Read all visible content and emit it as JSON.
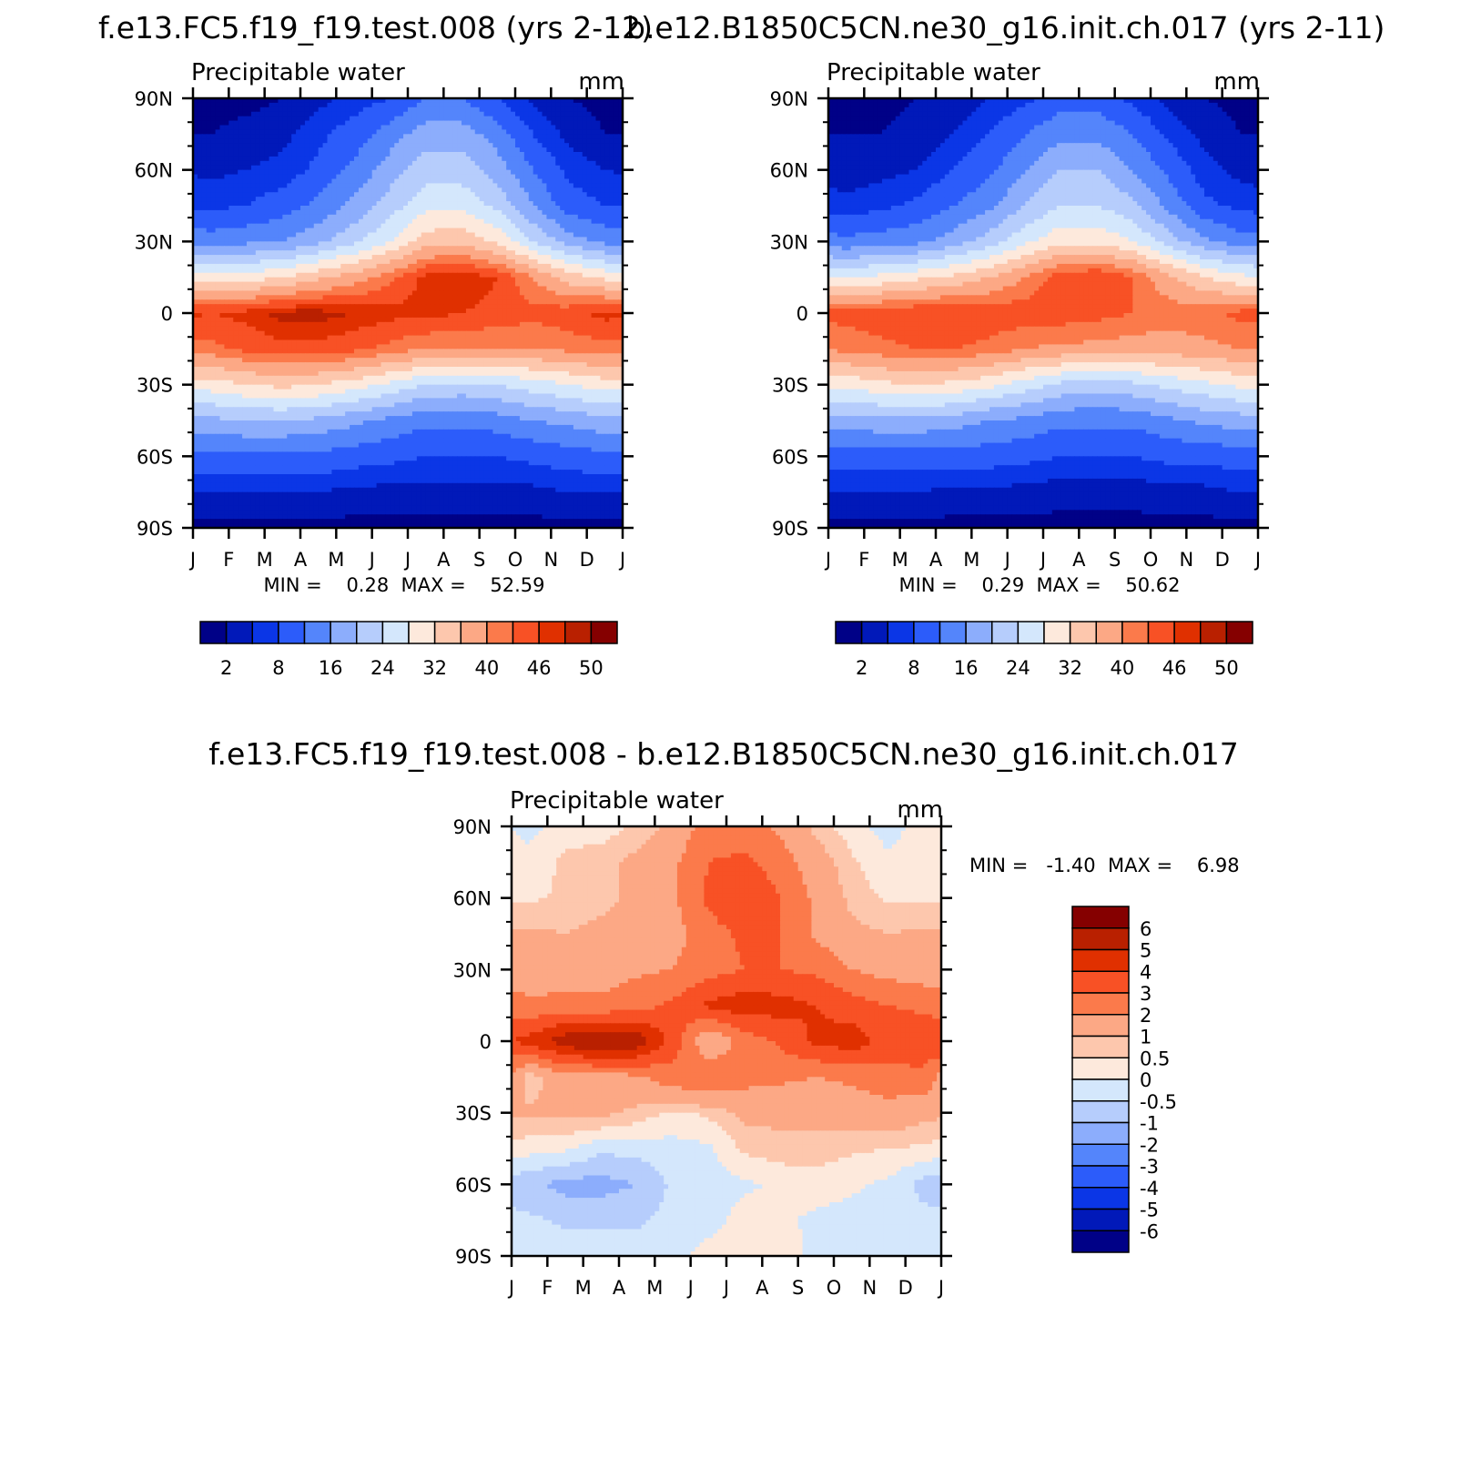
{
  "colors": {
    "positive": [
      "#fde9dc",
      "#fdc7ad",
      "#fca885",
      "#fb7a4b",
      "#f85125",
      "#e03000",
      "#b92000",
      "#850000"
    ],
    "negative": [
      "#d4e7fc",
      "#b6cdfc",
      "#8cadfc",
      "#5485fb",
      "#2c5cfa",
      "#0b36e6",
      "#0119b9",
      "#000187"
    ],
    "upper_scale": [
      "#000187",
      "#0119b9",
      "#0b36e6",
      "#2c5cfa",
      "#5485fb",
      "#8cadfc",
      "#b6cdfc",
      "#d4e7fc",
      "#fde9dc",
      "#fdc7ad",
      "#fca885",
      "#fb7a4b",
      "#f85125",
      "#e03000",
      "#b92000",
      "#850000"
    ]
  },
  "chart_data": [
    {
      "type": "heatmap",
      "panel": "model",
      "title": "f.e13.FC5.f19_f19.test.008 (yrs 2-12)",
      "subtitle": "Precipitable water",
      "units": "mm",
      "stats": "MIN =    0.28  MAX =    52.59",
      "x_ticks": [
        "J",
        "F",
        "M",
        "A",
        "M",
        "J",
        "J",
        "A",
        "S",
        "O",
        "N",
        "D",
        "J"
      ],
      "y_ticks": [
        "90N",
        "60N",
        "30N",
        "0",
        "30S",
        "60S",
        "90S"
      ],
      "legend_labels": [
        "2",
        "8",
        "16",
        "24",
        "32",
        "40",
        "46",
        "50"
      ],
      "months": [
        "J",
        "F",
        "M",
        "A",
        "M",
        "J",
        "J",
        "A",
        "S",
        "O",
        "N",
        "D"
      ],
      "latitudes": [
        90,
        75,
        60,
        45,
        30,
        15,
        0,
        -15,
        -30,
        -45,
        -60,
        -75,
        -90
      ],
      "values": [
        [
          1,
          1,
          2,
          4,
          6,
          8,
          12,
          12,
          8,
          4,
          2,
          1
        ],
        [
          2,
          3,
          4,
          7,
          10,
          14,
          18,
          18,
          14,
          8,
          4,
          2
        ],
        [
          4,
          5,
          6,
          9,
          13,
          18,
          22,
          22,
          18,
          12,
          7,
          5
        ],
        [
          7,
          8,
          10,
          13,
          17,
          22,
          27,
          27,
          23,
          16,
          10,
          8
        ],
        [
          14,
          15,
          16,
          19,
          23,
          28,
          34,
          35,
          31,
          24,
          18,
          15
        ],
        [
          30,
          30,
          32,
          35,
          38,
          42,
          47,
          48,
          46,
          40,
          34,
          31
        ],
        [
          46,
          47,
          49,
          49,
          48,
          47,
          47,
          46,
          45,
          44,
          45,
          47
        ],
        [
          42,
          44,
          45,
          45,
          44,
          42,
          40,
          40,
          40,
          40,
          41,
          42
        ],
        [
          30,
          32,
          33,
          32,
          30,
          27,
          24,
          23,
          24,
          26,
          28,
          30
        ],
        [
          19,
          20,
          20,
          19,
          17,
          15,
          13,
          13,
          14,
          16,
          17,
          19
        ],
        [
          11,
          11,
          11,
          11,
          10,
          9,
          8,
          8,
          8,
          9,
          10,
          11
        ],
        [
          5,
          5,
          5,
          5,
          4,
          4,
          4,
          4,
          4,
          4,
          5,
          5
        ],
        [
          1,
          1,
          1,
          1,
          1,
          1,
          1,
          1,
          1,
          1,
          1,
          1
        ]
      ],
      "levels": [
        2,
        5,
        8,
        12,
        16,
        20,
        24,
        28,
        32,
        36,
        40,
        43,
        46,
        48,
        50
      ]
    },
    {
      "type": "heatmap",
      "panel": "reference",
      "title": "b.e12.B1850C5CN.ne30_g16.init.ch.017 (yrs 2-11)",
      "subtitle": "Precipitable water",
      "units": "mm",
      "stats": "MIN =    0.29  MAX =    50.62",
      "x_ticks": [
        "J",
        "F",
        "M",
        "A",
        "M",
        "J",
        "J",
        "A",
        "S",
        "O",
        "N",
        "D",
        "J"
      ],
      "y_ticks": [
        "90N",
        "60N",
        "30N",
        "0",
        "30S",
        "60S",
        "90S"
      ],
      "legend_labels": [
        "2",
        "8",
        "16",
        "24",
        "32",
        "40",
        "46",
        "50"
      ],
      "months": [
        "J",
        "F",
        "M",
        "A",
        "M",
        "J",
        "J",
        "A",
        "S",
        "O",
        "N",
        "D"
      ],
      "latitudes": [
        90,
        75,
        60,
        45,
        30,
        15,
        0,
        -15,
        -30,
        -45,
        -60,
        -75,
        -90
      ],
      "values": [
        [
          1,
          1,
          2,
          3,
          5,
          7,
          10,
          10,
          7,
          4,
          2,
          1
        ],
        [
          2,
          2,
          3,
          5,
          8,
          12,
          15,
          15,
          12,
          7,
          4,
          2
        ],
        [
          3,
          4,
          5,
          8,
          11,
          16,
          20,
          20,
          16,
          11,
          6,
          4
        ],
        [
          6,
          7,
          9,
          12,
          15,
          20,
          24,
          24,
          21,
          15,
          9,
          7
        ],
        [
          13,
          14,
          15,
          18,
          22,
          27,
          31,
          31,
          28,
          22,
          17,
          14
        ],
        [
          28,
          29,
          31,
          33,
          36,
          40,
          45,
          46,
          43,
          37,
          32,
          29
        ],
        [
          44,
          45,
          46,
          46,
          45,
          45,
          45,
          44,
          43,
          42,
          42,
          44
        ],
        [
          41,
          42,
          43,
          43,
          42,
          40,
          39,
          39,
          38,
          38,
          39,
          40
        ],
        [
          29,
          31,
          32,
          31,
          29,
          26,
          23,
          22,
          23,
          25,
          27,
          29
        ],
        [
          18,
          19,
          19,
          18,
          16,
          15,
          13,
          13,
          13,
          15,
          17,
          18
        ],
        [
          10,
          10,
          10,
          10,
          10,
          9,
          8,
          8,
          8,
          9,
          9,
          10
        ],
        [
          5,
          5,
          5,
          4,
          4,
          4,
          3,
          3,
          3,
          4,
          4,
          5
        ],
        [
          1,
          1,
          1,
          1,
          1,
          1,
          1,
          1,
          1,
          1,
          1,
          1
        ]
      ],
      "levels": [
        2,
        5,
        8,
        12,
        16,
        20,
        24,
        28,
        32,
        36,
        40,
        43,
        46,
        48,
        50
      ]
    },
    {
      "type": "heatmap",
      "panel": "difference",
      "title": "f.e13.FC5.f19_f19.test.008 - b.e12.B1850C5CN.ne30_g16.init.ch.017",
      "subtitle": "Precipitable water",
      "units": "mm",
      "stats": "MIN =   -1.40  MAX =    6.98",
      "x_ticks": [
        "J",
        "F",
        "M",
        "A",
        "M",
        "J",
        "J",
        "A",
        "S",
        "O",
        "N",
        "D",
        "J"
      ],
      "y_ticks": [
        "90N",
        "60N",
        "30N",
        "0",
        "30S",
        "60S",
        "90S"
      ],
      "legend_labels": [
        "6",
        "5",
        "4",
        "3",
        "2",
        "1",
        "0.5",
        "0",
        "-0.5",
        "-1",
        "-2",
        "-3",
        "-4",
        "-5",
        "-6"
      ],
      "months": [
        "J",
        "F",
        "M",
        "A",
        "M",
        "J",
        "J",
        "A",
        "S",
        "O",
        "N",
        "D"
      ],
      "latitudes": [
        90,
        75,
        60,
        45,
        30,
        15,
        0,
        -15,
        -30,
        -45,
        -60,
        -75,
        -90
      ],
      "values": [
        [
          -0.2,
          0.3,
          0.2,
          0.6,
          1.2,
          2.5,
          2.5,
          1.8,
          0.8,
          0.2,
          -0.2,
          0.2
        ],
        [
          0.2,
          0.6,
          0.8,
          1.2,
          1.8,
          3.0,
          3.2,
          2.5,
          1.4,
          0.6,
          0.1,
          0.3
        ],
        [
          0.4,
          0.6,
          0.8,
          1.2,
          1.8,
          3.2,
          4.1,
          3.0,
          1.8,
          0.8,
          0.4,
          0.4
        ],
        [
          1.1,
          1.0,
          1.2,
          1.4,
          1.6,
          2.6,
          3.2,
          3.0,
          1.8,
          1.2,
          1.0,
          1.1
        ],
        [
          1.3,
          1.4,
          1.6,
          1.8,
          2.0,
          2.6,
          3.0,
          3.0,
          2.8,
          2.0,
          1.6,
          1.4
        ],
        [
          2.2,
          2.4,
          2.2,
          2.6,
          3.2,
          4.2,
          4.6,
          4.4,
          4.0,
          3.4,
          3.0,
          2.8
        ],
        [
          4.4,
          5.6,
          6.2,
          5.8,
          3.6,
          1.0,
          2.4,
          3.2,
          4.2,
          4.6,
          3.6,
          3.6
        ],
        [
          0.6,
          1.6,
          1.6,
          1.8,
          2.6,
          3.0,
          2.4,
          2.2,
          2.0,
          2.2,
          2.6,
          2.8
        ],
        [
          1.1,
          1.2,
          1.2,
          0.8,
          0.4,
          0.6,
          1.2,
          1.2,
          1.2,
          1.4,
          1.6,
          1.2
        ],
        [
          0.2,
          0.1,
          -0.4,
          -0.3,
          -0.2,
          -0.1,
          0.6,
          0.8,
          0.8,
          0.6,
          0.5,
          0.4
        ],
        [
          -0.9,
          -1.2,
          -1.2,
          -1.0,
          -0.4,
          -0.3,
          -0.1,
          0.1,
          0.2,
          0.1,
          -0.1,
          -0.7
        ],
        [
          -0.4,
          -0.6,
          -0.6,
          -0.6,
          -0.3,
          -0.2,
          0.2,
          0.1,
          -0.1,
          -0.2,
          -0.2,
          -0.3
        ],
        [
          -0.2,
          -0.2,
          -0.2,
          -0.2,
          -0.2,
          0.2,
          0.3,
          0.2,
          -0.1,
          -0.1,
          -0.2,
          -0.2
        ]
      ],
      "levels": [
        -6,
        -5,
        -4,
        -3,
        -2,
        -1,
        -0.5,
        0,
        0.5,
        1,
        2,
        3,
        4,
        5,
        6
      ]
    }
  ]
}
